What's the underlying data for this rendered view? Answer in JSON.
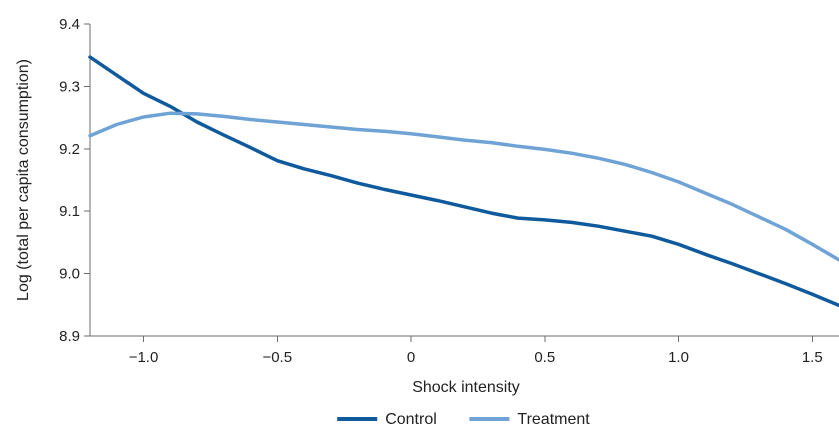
{
  "chart_data": {
    "type": "line",
    "title": "",
    "xlabel": "Shock intensity",
    "ylabel": "Log (total per capita consumption)",
    "xlim": [
      -1.2,
      1.6
    ],
    "ylim": [
      8.9,
      9.4
    ],
    "x_ticks": [
      -1.0,
      -0.5,
      0,
      0.5,
      1.0,
      1.5
    ],
    "x_tick_labels": [
      "−1.0",
      "−0.5",
      "0",
      "0.5",
      "1.0",
      "1.5"
    ],
    "y_ticks": [
      8.9,
      9.0,
      9.1,
      9.2,
      9.3,
      9.4
    ],
    "y_tick_labels": [
      "8.9",
      "9.0",
      "9.1",
      "9.2",
      "9.3",
      "9.4"
    ],
    "grid": false,
    "legend_position": "bottom",
    "series": [
      {
        "name": "Control",
        "color": "#0f5a9c",
        "x": [
          -1.2,
          -1.1,
          -1.0,
          -0.9,
          -0.8,
          -0.7,
          -0.6,
          -0.5,
          -0.4,
          -0.3,
          -0.2,
          -0.1,
          0.0,
          0.1,
          0.2,
          0.3,
          0.4,
          0.5,
          0.6,
          0.7,
          0.8,
          0.9,
          1.0,
          1.1,
          1.2,
          1.3,
          1.4,
          1.5,
          1.6
        ],
        "values": [
          9.347,
          9.318,
          9.289,
          9.268,
          9.243,
          9.222,
          9.202,
          9.181,
          9.168,
          9.157,
          9.145,
          9.135,
          9.126,
          9.117,
          9.107,
          9.097,
          9.089,
          9.086,
          9.082,
          9.076,
          9.068,
          9.06,
          9.047,
          9.031,
          9.016,
          9.0,
          8.984,
          8.967,
          8.949
        ]
      },
      {
        "name": "Treatment",
        "color": "#6fa3d6",
        "x": [
          -1.2,
          -1.1,
          -1.0,
          -0.9,
          -0.8,
          -0.7,
          -0.6,
          -0.5,
          -0.4,
          -0.3,
          -0.2,
          -0.1,
          0.0,
          0.1,
          0.2,
          0.3,
          0.4,
          0.5,
          0.6,
          0.7,
          0.8,
          0.9,
          1.0,
          1.1,
          1.2,
          1.3,
          1.4,
          1.5,
          1.6
        ],
        "values": [
          9.221,
          9.239,
          9.251,
          9.257,
          9.256,
          9.252,
          9.247,
          9.243,
          9.239,
          9.235,
          9.231,
          9.228,
          9.224,
          9.219,
          9.214,
          9.21,
          9.204,
          9.199,
          9.193,
          9.185,
          9.175,
          9.162,
          9.147,
          9.129,
          9.111,
          9.091,
          9.071,
          9.047,
          9.022
        ]
      }
    ]
  }
}
